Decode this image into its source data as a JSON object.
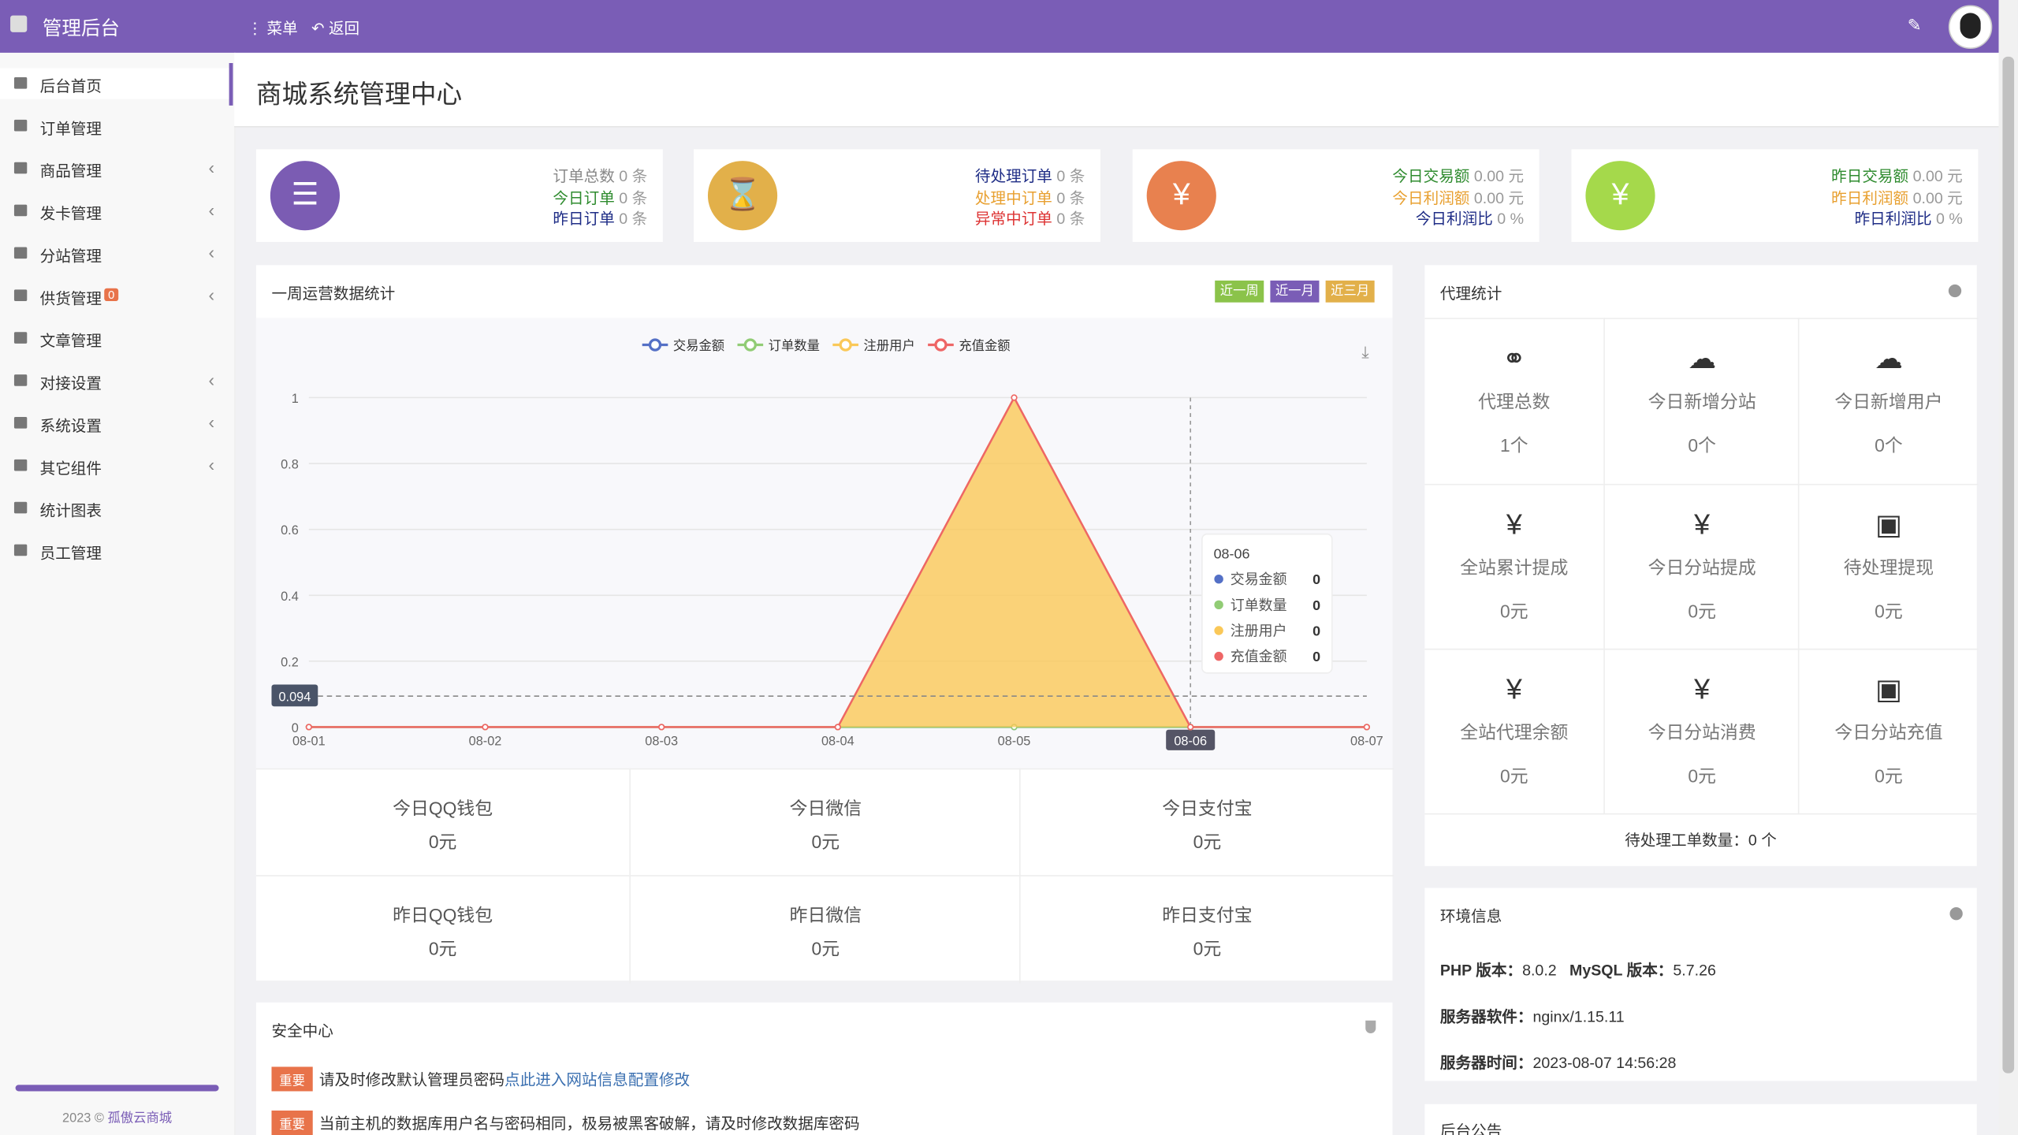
{
  "header": {
    "brand": "管理后台",
    "menu": "菜单",
    "back": "返回"
  },
  "sidebar": {
    "items": [
      "后台首页",
      "订单管理",
      "商品管理",
      "发卡管理",
      "分站管理",
      "供货管理",
      "文章管理",
      "对接设置",
      "系统设置",
      "其它组件",
      "统计图表",
      "员工管理"
    ],
    "badge": "0",
    "footer_year": "2023 ©",
    "footer_link": "孤傲云商城"
  },
  "page_title": "商城系统管理中心",
  "stat_cards": [
    {
      "rows": [
        {
          "label": "订单总数",
          "value": "0 条"
        },
        {
          "label": "今日订单",
          "value": "0 条"
        },
        {
          "label": "昨日订单",
          "value": "0 条"
        }
      ]
    },
    {
      "rows": [
        {
          "label": "待处理订单",
          "value": "0 条"
        },
        {
          "label": "处理中订单",
          "value": "0 条"
        },
        {
          "label": "异常中订单",
          "value": "0 条"
        }
      ]
    },
    {
      "rows": [
        {
          "label": "今日交易额",
          "value": "0.00 元"
        },
        {
          "label": "今日利润额",
          "value": "0.00 元"
        },
        {
          "label": "今日利润比",
          "value": "0 %"
        }
      ]
    },
    {
      "rows": [
        {
          "label": "昨日交易额",
          "value": "0.00 元"
        },
        {
          "label": "昨日利润额",
          "value": "0.00 元"
        },
        {
          "label": "昨日利润比",
          "value": "0 %"
        }
      ]
    }
  ],
  "weekly": {
    "title": "一周运营数据统计",
    "buttons": [
      "近一周",
      "近一月",
      "近三月"
    ],
    "chart_data": {
      "type": "line",
      "stacked": true,
      "categories": [
        "08-01",
        "08-02",
        "08-03",
        "08-04",
        "08-05",
        "08-06",
        "08-07"
      ],
      "series": [
        {
          "name": "交易金额",
          "color": "#5470c6",
          "values": [
            0,
            0,
            0,
            0,
            0,
            0,
            0
          ]
        },
        {
          "name": "订单数量",
          "color": "#91cc75",
          "values": [
            0,
            0,
            0,
            0,
            0,
            0,
            0
          ]
        },
        {
          "name": "注册用户",
          "color": "#fac858",
          "area": true,
          "values": [
            0,
            0,
            0,
            0,
            1,
            0,
            0
          ]
        },
        {
          "name": "充值金额",
          "color": "#ee6666",
          "values": [
            0,
            0,
            0,
            0,
            0,
            0,
            0
          ]
        }
      ],
      "ylim": [
        0,
        1
      ],
      "yticks": [
        0,
        0.2,
        0.4,
        0.6,
        0.8,
        1
      ],
      "grid": true,
      "mark_line": 0.094,
      "tooltip_index": 5
    }
  },
  "payments": [
    {
      "label": "今日QQ钱包",
      "value": "0元"
    },
    {
      "label": "今日微信",
      "value": "0元"
    },
    {
      "label": "今日支付宝",
      "value": "0元"
    },
    {
      "label": "昨日QQ钱包",
      "value": "0元"
    },
    {
      "label": "昨日微信",
      "value": "0元"
    },
    {
      "label": "昨日支付宝",
      "value": "0元"
    }
  ],
  "security": {
    "title": "安全中心",
    "items": [
      {
        "tag": "重要",
        "text": "请及时修改默认管理员密码",
        "link": "点此进入网站信息配置修改"
      },
      {
        "tag": "重要",
        "text": "当前主机的数据库用户名与密码相同，极易被黑客破解，请及时修改数据库密码"
      }
    ]
  },
  "agent": {
    "title": "代理统计",
    "cells": [
      {
        "label": "代理总数",
        "value": "1个"
      },
      {
        "label": "今日新增分站",
        "value": "0个"
      },
      {
        "label": "今日新增用户",
        "value": "0个"
      },
      {
        "label": "全站累计提成",
        "value": "0元"
      },
      {
        "label": "今日分站提成",
        "value": "0元"
      },
      {
        "label": "待处理提现",
        "value": "0元"
      },
      {
        "label": "全站代理余额",
        "value": "0元"
      },
      {
        "label": "今日分站消费",
        "value": "0元"
      },
      {
        "label": "今日分站充值",
        "value": "0元"
      }
    ],
    "footer": "待处理工单数量：0 个"
  },
  "env": {
    "title": "环境信息",
    "rows": [
      [
        {
          "k": "PHP 版本：",
          "v": "8.0.2"
        },
        {
          "k": "MySQL 版本：",
          "v": "5.7.26"
        }
      ],
      [
        {
          "k": "服务器软件：",
          "v": "nginx/1.15.11"
        }
      ],
      [
        {
          "k": "服务器时间：",
          "v": "2023-08-07 14:56:28"
        }
      ]
    ]
  },
  "notice": {
    "title": "后台公告"
  }
}
